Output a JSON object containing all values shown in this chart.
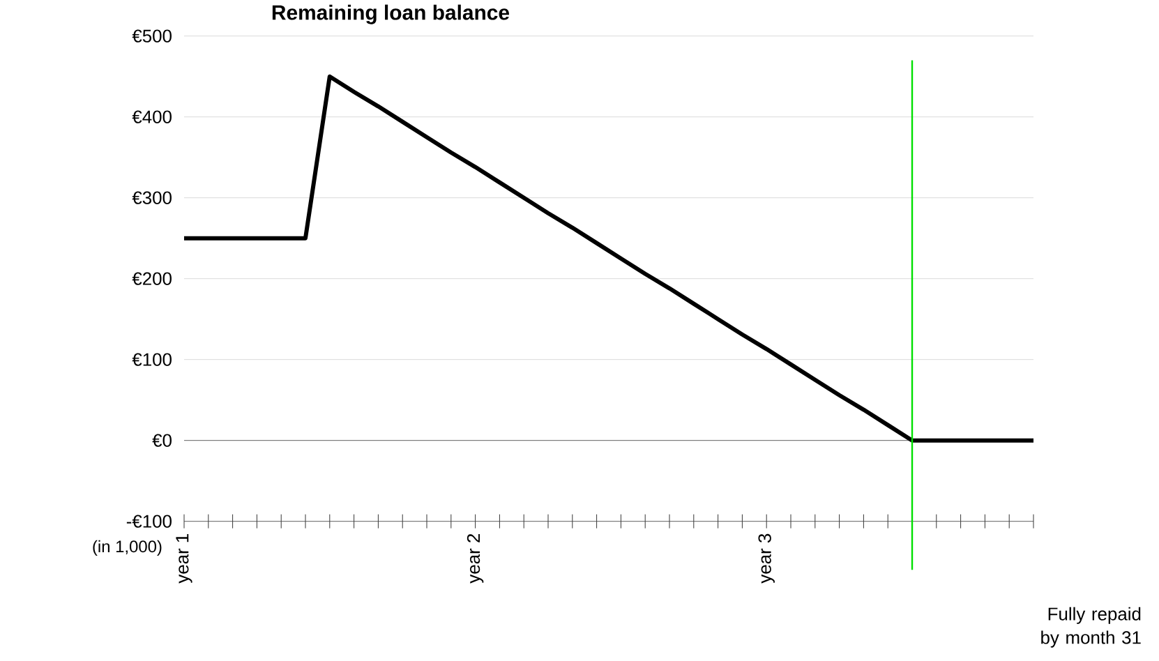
{
  "chart_data": {
    "type": "line",
    "title": "Remaining loan balance",
    "ylabel": "(in 1,000)",
    "categories": [
      "year 1",
      null,
      null,
      null,
      null,
      null,
      null,
      null,
      null,
      null,
      null,
      null,
      "year 2",
      null,
      null,
      null,
      null,
      null,
      null,
      null,
      null,
      null,
      null,
      null,
      "year 3",
      null,
      null,
      null,
      null,
      null,
      null,
      null,
      null,
      null,
      null,
      null
    ],
    "series": [
      {
        "color": "#000000",
        "values": [
          250,
          250,
          250,
          250,
          250,
          250,
          450,
          431,
          413,
          394,
          375,
          356,
          338,
          319,
          300,
          281,
          263,
          244,
          225,
          206,
          188,
          169,
          150,
          131,
          113,
          94,
          75,
          56,
          38,
          19,
          0,
          0,
          0,
          0,
          0,
          0
        ]
      }
    ],
    "ylim": [
      -100,
      500
    ],
    "yticks": [
      {
        "value": -100,
        "label": "-€100"
      },
      {
        "value": 0,
        "label": "€0"
      },
      {
        "value": 100,
        "label": "€100"
      },
      {
        "value": 200,
        "label": "€200"
      },
      {
        "value": 300,
        "label": "€300"
      },
      {
        "value": 400,
        "label": "€400"
      },
      {
        "value": 500,
        "label": "€500"
      }
    ],
    "grid": "y",
    "annotations": [
      "Fully repaid by month 31"
    ]
  }
}
